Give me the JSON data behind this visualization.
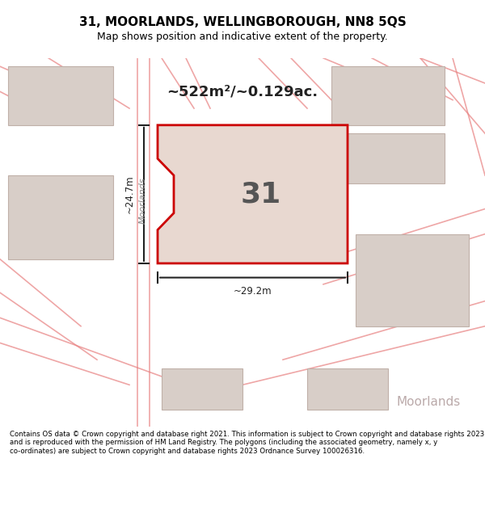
{
  "title_line1": "31, MOORLANDS, WELLINGBOROUGH, NN8 5QS",
  "title_line2": "Map shows position and indicative extent of the property.",
  "area_label": "~522m²/~0.129ac.",
  "plot_number": "31",
  "dim_vertical": "~24.7m",
  "dim_horizontal": "~29.2m",
  "street_label": "Moorlands",
  "corner_label": "Moorlands",
  "footer_text": "Contains OS data © Crown copyright and database right 2021. This information is subject to Crown copyright and database rights 2023 and is reproduced with the permission of HM Land Registry. The polygons (including the associated geometry, namely x, y co-ordinates) are subject to Crown copyright and database rights 2023 Ordnance Survey 100026316.",
  "bg_color": "#f0ede8",
  "map_bg": "#f0ede8",
  "plot_fill": "#e8d8d0",
  "plot_edge": "#cc0000",
  "road_line_color": "#e88080",
  "building_fill": "#d8cec8",
  "building_edge": "#c0b0a8",
  "footer_bg": "#ffffff",
  "title_bg": "#ffffff"
}
